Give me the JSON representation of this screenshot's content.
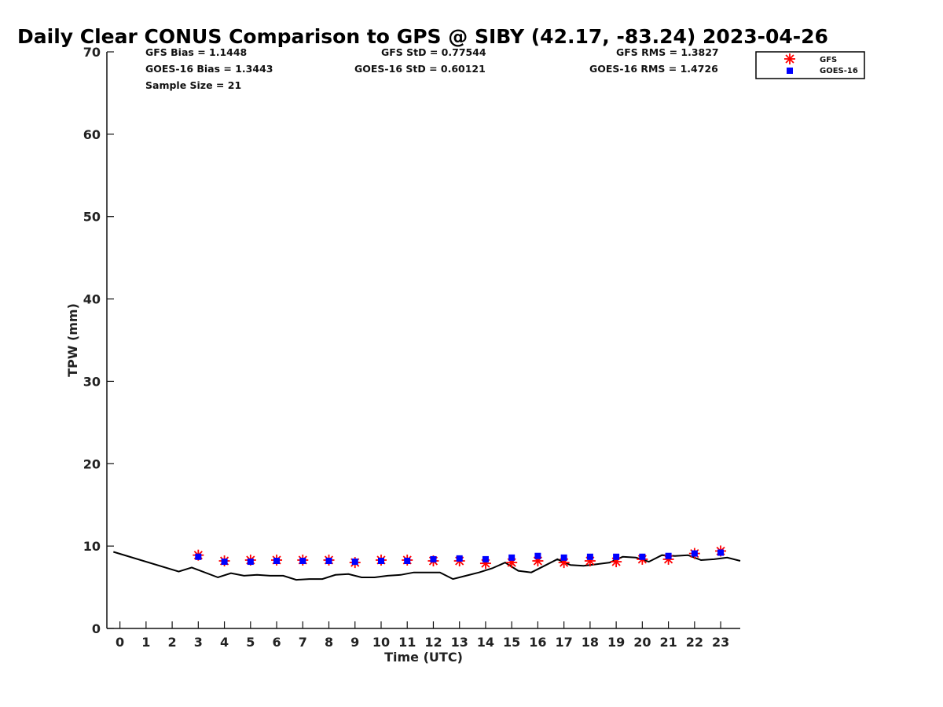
{
  "chart_data": {
    "type": "scatter",
    "title": "Daily Clear CONUS Comparison to GPS @ SIBY (42.17, -83.24) 2023-04-26",
    "xlabel": "Time (UTC)",
    "ylabel": "TPW (mm)",
    "xlim": [
      -0.5,
      23.75
    ],
    "ylim": [
      0,
      70
    ],
    "x_ticks": [
      0,
      1,
      2,
      3,
      4,
      5,
      6,
      7,
      8,
      9,
      10,
      11,
      12,
      13,
      14,
      15,
      16,
      17,
      18,
      19,
      20,
      21,
      22,
      23
    ],
    "y_ticks": [
      0,
      10,
      20,
      30,
      40,
      50,
      60,
      70
    ],
    "grid": false,
    "legend_position": "top-right",
    "stats": {
      "gfs_bias": "GFS Bias = 1.1448",
      "goes_bias": "GOES-16 Bias = 1.3443",
      "sample_size": "Sample Size = 21",
      "gfs_std": "GFS StD = 0.77544",
      "goes_std": "GOES-16 StD = 0.60121",
      "gfs_rms": "GFS RMS = 1.3827",
      "goes_rms": "GOES-16 RMS = 1.4726"
    },
    "series": [
      {
        "kind": "line",
        "color": "#000000",
        "x": [
          -0.25,
          2.25,
          2.75,
          3.75,
          4.25,
          4.75,
          5.25,
          5.75,
          6.25,
          6.75,
          7.25,
          7.75,
          8.25,
          8.75,
          9.25,
          9.75,
          10.25,
          10.75,
          11.25,
          11.75,
          12.25,
          12.75,
          13.25,
          13.75,
          14.25,
          14.75,
          15.25,
          15.75,
          16.25,
          16.75,
          17.25,
          17.75,
          18.25,
          18.75,
          19.25,
          19.75,
          20.25,
          20.75,
          21.25,
          21.75,
          22.25,
          22.75,
          23.25,
          23.75
        ],
        "y": [
          9.3,
          6.9,
          7.4,
          6.2,
          6.7,
          6.4,
          6.5,
          6.4,
          6.4,
          5.9,
          6.0,
          6.0,
          6.5,
          6.6,
          6.2,
          6.2,
          6.4,
          6.5,
          6.8,
          6.8,
          6.8,
          6.0,
          6.4,
          6.8,
          7.3,
          8.0,
          7.0,
          6.8,
          7.6,
          8.4,
          7.7,
          7.6,
          7.8,
          8.0,
          8.7,
          8.6,
          8.1,
          8.9,
          8.8,
          8.9,
          8.3,
          8.4,
          8.6,
          8.2
        ]
      },
      {
        "name": "GFS",
        "kind": "star",
        "color": "#ff0000",
        "x": [
          3,
          4,
          5,
          6,
          7,
          8,
          9,
          10,
          11,
          12,
          13,
          14,
          15,
          16,
          17,
          18,
          19,
          20,
          21,
          22,
          23
        ],
        "y": [
          8.9,
          8.2,
          8.3,
          8.3,
          8.3,
          8.3,
          8.0,
          8.3,
          8.3,
          8.2,
          8.2,
          7.9,
          8.0,
          8.2,
          8.0,
          8.2,
          8.1,
          8.4,
          8.4,
          9.1,
          9.4
        ]
      },
      {
        "name": "GOES-16",
        "kind": "square",
        "color": "#0000ff",
        "x": [
          3,
          4,
          5,
          6,
          7,
          8,
          9,
          10,
          11,
          12,
          13,
          14,
          15,
          16,
          17,
          18,
          19,
          20,
          21,
          22,
          23
        ],
        "y": [
          8.7,
          8.1,
          8.1,
          8.2,
          8.2,
          8.2,
          8.1,
          8.2,
          8.2,
          8.4,
          8.5,
          8.4,
          8.6,
          8.8,
          8.6,
          8.7,
          8.7,
          8.7,
          8.8,
          9.1,
          9.2
        ]
      }
    ]
  }
}
